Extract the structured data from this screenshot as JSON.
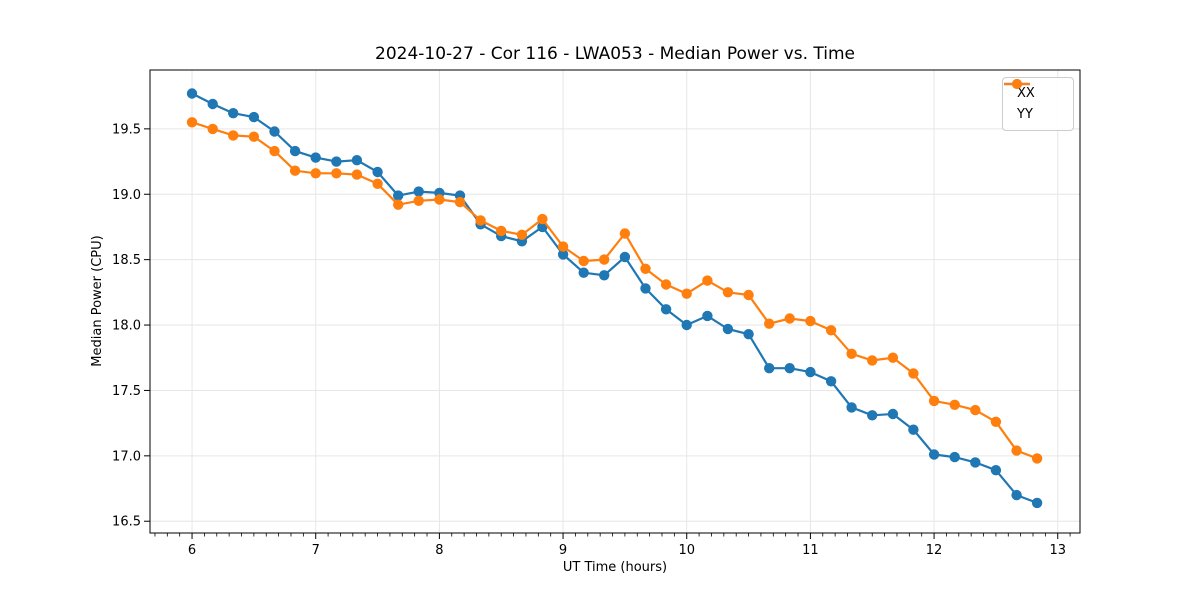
{
  "chart": {
    "title": "2024-10-27 - Cor 116 - LWA053 - Median Power vs. Time",
    "xlabel": "UT Time (hours)",
    "ylabel": "Median Power (CPU)"
  },
  "legend": {
    "position": "upper right",
    "items": [
      {
        "label": "XX",
        "color": "#1f77b4"
      },
      {
        "label": "YY",
        "color": "#ff7f0e"
      }
    ]
  },
  "colors": {
    "series_xx": "#1f77b4",
    "series_yy": "#ff7f0e",
    "grid": "#e6e6e6",
    "spine": "#000000",
    "background": "#ffffff",
    "text": "#000000"
  },
  "chart_data": {
    "type": "line",
    "title": "2024-10-27 - Cor 116 - LWA053 - Median Power vs. Time",
    "xlabel": "UT Time (hours)",
    "ylabel": "Median Power (CPU)",
    "grid": true,
    "legend_position": "upper right",
    "marker": "o",
    "xlim": [
      5.66,
      13.18
    ],
    "ylim": [
      16.41,
      19.95
    ],
    "xticks": {
      "values": [
        6,
        7,
        8,
        9,
        10,
        11,
        12,
        13
      ],
      "labels": [
        "6",
        "7",
        "8",
        "9",
        "10",
        "11",
        "12",
        "13"
      ]
    },
    "yticks": {
      "values": [
        16.5,
        17.0,
        17.5,
        18.0,
        18.5,
        19.0,
        19.5
      ],
      "labels": [
        "16.5",
        "17.0",
        "17.5",
        "18.0",
        "18.5",
        "19.0",
        "19.5"
      ]
    },
    "x_minor_step": 0.1,
    "x": [
      6.0,
      6.167,
      6.333,
      6.5,
      6.667,
      6.833,
      7.0,
      7.167,
      7.333,
      7.5,
      7.667,
      7.833,
      8.0,
      8.167,
      8.333,
      8.5,
      8.667,
      8.833,
      9.0,
      9.167,
      9.333,
      9.5,
      9.667,
      9.833,
      10.0,
      10.167,
      10.333,
      10.5,
      10.667,
      10.833,
      11.0,
      11.167,
      11.333,
      11.5,
      11.667,
      11.833,
      12.0,
      12.167,
      12.333,
      12.5,
      12.667,
      12.833
    ],
    "series": [
      {
        "name": "XX",
        "color": "#1f77b4",
        "values": [
          19.77,
          19.69,
          19.62,
          19.59,
          19.48,
          19.33,
          19.28,
          19.25,
          19.26,
          19.17,
          18.99,
          19.02,
          19.01,
          18.99,
          18.77,
          18.68,
          18.64,
          18.75,
          18.54,
          18.4,
          18.38,
          18.52,
          18.28,
          18.12,
          18.0,
          18.07,
          17.97,
          17.93,
          17.67,
          17.67,
          17.64,
          17.57,
          17.37,
          17.31,
          17.32,
          17.2,
          17.01,
          16.99,
          16.95,
          16.89,
          16.7,
          16.64
        ]
      },
      {
        "name": "YY",
        "color": "#ff7f0e",
        "values": [
          19.55,
          19.5,
          19.45,
          19.44,
          19.33,
          19.18,
          19.16,
          19.16,
          19.15,
          19.08,
          18.92,
          18.95,
          18.96,
          18.94,
          18.8,
          18.72,
          18.69,
          18.81,
          18.6,
          18.49,
          18.5,
          18.7,
          18.43,
          18.31,
          18.24,
          18.34,
          18.25,
          18.23,
          18.01,
          18.05,
          18.03,
          17.96,
          17.78,
          17.73,
          17.75,
          17.63,
          17.42,
          17.39,
          17.35,
          17.26,
          17.04,
          16.98
        ]
      }
    ]
  }
}
